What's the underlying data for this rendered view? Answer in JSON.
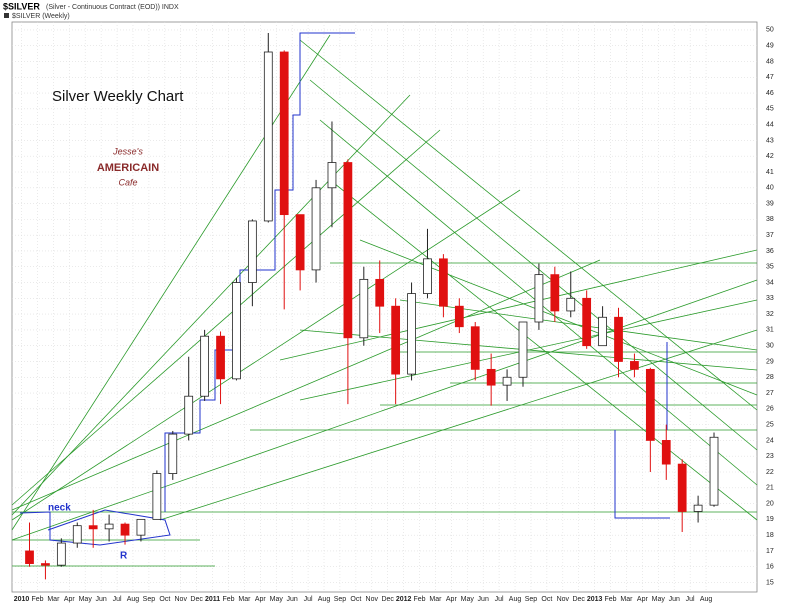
{
  "header": {
    "title": "$SILVER",
    "subtitle": "(Silver - Continuous Contract (EOD)) INDX",
    "legend": "$SILVER (Weekly)"
  },
  "logo": {
    "line1": "Jesse's",
    "line2": "AMERICAIN",
    "line3": "Cafe"
  },
  "chart_data": {
    "type": "candlestick",
    "title": "Silver Weekly Chart",
    "annotations": [
      "neck",
      "R"
    ],
    "x": [
      0.5,
      1.5,
      2.5,
      3.5,
      4.5,
      5.5,
      6.5,
      7.5,
      8.5,
      9.5,
      10.5,
      11.5,
      12.5,
      13.5,
      14.5,
      15.5,
      16.5,
      17.5,
      18.5,
      19.5,
      20.5,
      21.5,
      22.5,
      23.5,
      24.5,
      25.5,
      26.5,
      27.5,
      28.5,
      29.5,
      30.5,
      31.5,
      32.5,
      33.5,
      34.5,
      35.5,
      36.5,
      37.5,
      38.5,
      39.5,
      40.5,
      41.5,
      42.5,
      43.5
    ],
    "open": [
      17.0,
      16.2,
      16.1,
      17.5,
      18.6,
      18.4,
      18.7,
      18.0,
      19.0,
      21.9,
      24.4,
      26.8,
      30.6,
      27.9,
      34.0,
      37.9,
      48.6,
      38.3,
      34.8,
      40.0,
      41.6,
      30.5,
      34.2,
      32.5,
      28.2,
      33.3,
      35.5,
      32.5,
      31.2,
      28.5,
      27.5,
      28.0,
      31.5,
      34.5,
      32.2,
      33.0,
      30.0,
      31.8,
      29.0,
      28.5,
      24.0,
      22.5,
      19.5,
      19.9
    ],
    "high": [
      18.8,
      16.4,
      17.8,
      18.8,
      19.6,
      19.3,
      18.8,
      19.0,
      22.1,
      24.6,
      29.3,
      31.0,
      30.9,
      34.3,
      38.0,
      49.8,
      48.7,
      38.3,
      40.5,
      44.2,
      41.8,
      35.0,
      35.4,
      33.0,
      34.0,
      37.4,
      35.8,
      33.0,
      31.5,
      29.5,
      28.5,
      31.5,
      35.2,
      35.0,
      34.7,
      33.5,
      32.5,
      32.4,
      29.5,
      28.6,
      25.0,
      22.8,
      20.5,
      24.5
    ],
    "low": [
      16.0,
      15.2,
      16.0,
      17.2,
      17.2,
      17.6,
      17.4,
      17.6,
      19.0,
      21.5,
      24.0,
      26.5,
      26.3,
      27.8,
      32.5,
      37.8,
      32.3,
      33.5,
      34.0,
      37.5,
      26.3,
      30.0,
      30.8,
      26.3,
      27.8,
      33.0,
      31.8,
      30.8,
      27.8,
      26.2,
      26.5,
      27.4,
      31.0,
      31.5,
      31.8,
      29.8,
      30.0,
      28.0,
      28.0,
      22.0,
      21.5,
      18.2,
      18.8,
      19.8
    ],
    "close": [
      16.2,
      16.1,
      17.5,
      18.6,
      18.4,
      18.7,
      18.0,
      19.0,
      21.9,
      24.4,
      26.8,
      30.6,
      27.9,
      34.0,
      37.9,
      48.6,
      38.3,
      34.8,
      40.0,
      41.6,
      30.5,
      34.2,
      32.5,
      28.2,
      33.3,
      35.5,
      32.5,
      31.2,
      28.5,
      27.5,
      28.0,
      31.5,
      34.5,
      32.2,
      33.0,
      30.0,
      31.8,
      29.0,
      28.5,
      24.0,
      22.5,
      19.5,
      19.9,
      24.2
    ],
    "up_color": "#ffffff",
    "down_color": "#e01010",
    "xlim": [
      -0.6,
      46.2
    ],
    "xticks": [
      {
        "value": 0,
        "label": "2010"
      },
      {
        "value": 1,
        "label": "Feb"
      },
      {
        "value": 2,
        "label": "Mar"
      },
      {
        "value": 3,
        "label": "Apr"
      },
      {
        "value": 4,
        "label": "May"
      },
      {
        "value": 5,
        "label": "Jun"
      },
      {
        "value": 6,
        "label": "Jul"
      },
      {
        "value": 7,
        "label": "Aug"
      },
      {
        "value": 8,
        "label": "Sep"
      },
      {
        "value": 9,
        "label": "Oct"
      },
      {
        "value": 10,
        "label": "Nov"
      },
      {
        "value": 11,
        "label": "Dec"
      },
      {
        "value": 12,
        "label": "2011"
      },
      {
        "value": 13,
        "label": "Feb"
      },
      {
        "value": 14,
        "label": "Mar"
      },
      {
        "value": 15,
        "label": "Apr"
      },
      {
        "value": 16,
        "label": "May"
      },
      {
        "value": 17,
        "label": "Jun"
      },
      {
        "value": 18,
        "label": "Jul"
      },
      {
        "value": 19,
        "label": "Aug"
      },
      {
        "value": 20,
        "label": "Sep"
      },
      {
        "value": 21,
        "label": "Oct"
      },
      {
        "value": 22,
        "label": "Nov"
      },
      {
        "value": 23,
        "label": "Dec"
      },
      {
        "value": 24,
        "label": "2012"
      },
      {
        "value": 25,
        "label": "Feb"
      },
      {
        "value": 26,
        "label": "Mar"
      },
      {
        "value": 27,
        "label": "Apr"
      },
      {
        "value": 28,
        "label": "May"
      },
      {
        "value": 29,
        "label": "Jun"
      },
      {
        "value": 30,
        "label": "Jul"
      },
      {
        "value": 31,
        "label": "Aug"
      },
      {
        "value": 32,
        "label": "Sep"
      },
      {
        "value": 33,
        "label": "Oct"
      },
      {
        "value": 34,
        "label": "Nov"
      },
      {
        "value": 35,
        "label": "Dec"
      },
      {
        "value": 36,
        "label": "2013"
      },
      {
        "value": 37,
        "label": "Feb"
      },
      {
        "value": 38,
        "label": "Mar"
      },
      {
        "value": 39,
        "label": "Apr"
      },
      {
        "value": 40,
        "label": "May"
      },
      {
        "value": 41,
        "label": "Jun"
      },
      {
        "value": 42,
        "label": "Jul"
      },
      {
        "value": 43,
        "label": "Aug"
      }
    ],
    "ylim": [
      14.4,
      50.5
    ],
    "yticks": [
      15,
      16,
      17,
      18,
      19,
      20,
      21,
      22,
      23,
      24,
      25,
      26,
      27,
      28,
      29,
      30,
      31,
      32,
      33,
      34,
      35,
      36,
      37,
      38,
      39,
      40,
      41,
      42,
      43,
      44,
      45,
      46,
      47,
      48,
      49,
      50
    ],
    "grid": true
  }
}
